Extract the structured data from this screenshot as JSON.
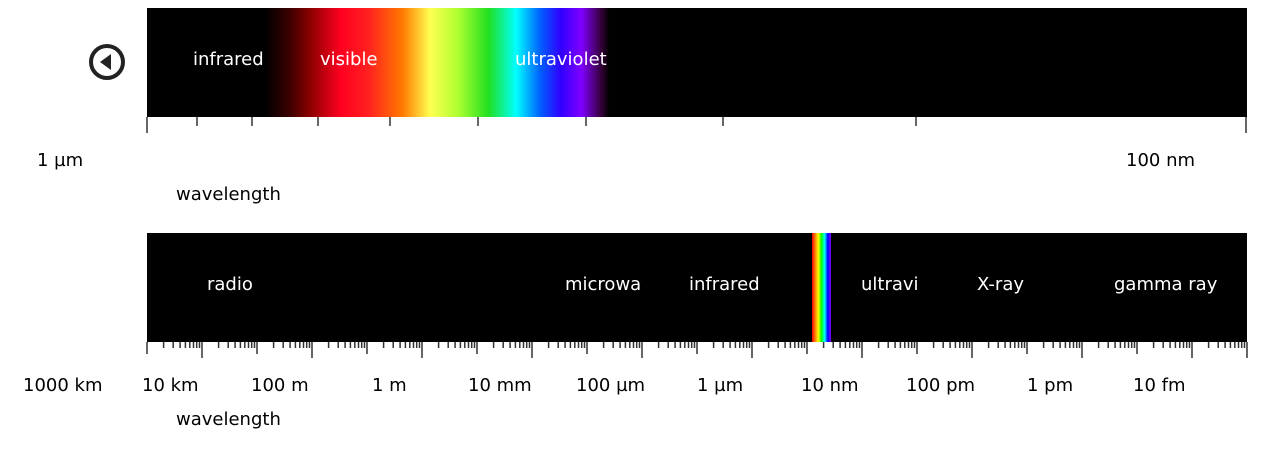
{
  "back_icon": "play-back-icon",
  "colors": {
    "band": "#000000",
    "label": "#ffffff",
    "tick": "#333333"
  },
  "zoom_panel": {
    "segment_labels": [
      "infrared",
      "visible",
      "ultraviolet"
    ],
    "scale_labels": [
      "1  µm",
      "100  nm"
    ],
    "caption": "wavelength"
  },
  "full_panel": {
    "segment_labels": [
      "radio",
      "microwave",
      "infrared",
      "ultraviolet",
      "X-ray",
      "gamma ray"
    ],
    "scale_labels": [
      "1000 km",
      "10  km",
      "100  m",
      "1  m",
      "10  mm",
      "100  µm",
      "1  µm",
      "10  nm",
      "100  pm",
      "1  pm",
      "10  fm"
    ],
    "caption": "wavelength"
  }
}
